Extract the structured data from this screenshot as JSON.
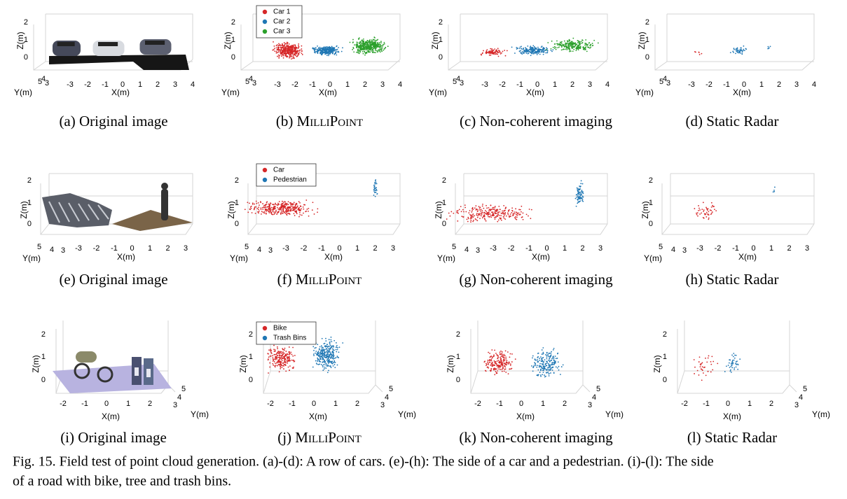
{
  "figure": {
    "panels": [
      {
        "label": "(a)",
        "text": "Original image",
        "axes": {
          "z_label": "Z(m)",
          "x_label": "X(m)",
          "y_label": "Y(m)",
          "z_ticks": [
            0,
            1,
            2
          ],
          "x_ticks": [
            -3,
            -2,
            -1,
            0,
            1,
            2,
            3,
            4
          ],
          "y_ticks": [
            5,
            4,
            3
          ]
        }
      },
      {
        "label": "(b)",
        "text": "MilliPoint",
        "axes": {
          "z_label": "Z(m)",
          "x_label": "X(m)",
          "y_label": "Y(m)",
          "z_ticks": [
            0,
            1,
            2
          ],
          "x_ticks": [
            -3,
            -2,
            -1,
            0,
            1,
            2,
            3,
            4
          ],
          "y_ticks": [
            5,
            4,
            3
          ]
        },
        "legend": [
          {
            "label": "Car 1",
            "color": "#d62728"
          },
          {
            "label": "Car 2",
            "color": "#1f77b4"
          },
          {
            "label": "Car 3",
            "color": "#2ca02c"
          }
        ]
      },
      {
        "label": "(c)",
        "text": "Non-coherent imaging",
        "axes": {
          "z_label": "Z(m)",
          "x_label": "X(m)",
          "y_label": "Y(m)",
          "z_ticks": [
            0,
            1,
            2
          ],
          "x_ticks": [
            -3,
            -2,
            -1,
            0,
            1,
            2,
            3,
            4
          ],
          "y_ticks": [
            5,
            4,
            3
          ]
        }
      },
      {
        "label": "(d)",
        "text": "Static Radar",
        "axes": {
          "z_label": "Z(m)",
          "x_label": "X(m)",
          "y_label": "Y(m)",
          "z_ticks": [
            0,
            1,
            2
          ],
          "x_ticks": [
            -3,
            -2,
            -1,
            0,
            1,
            2,
            3,
            4
          ],
          "y_ticks": [
            5,
            4,
            3
          ]
        }
      },
      {
        "label": "(e)",
        "text": "Original image",
        "axes": {
          "z_label": "Z(m)",
          "x_label": "X(m)",
          "y_label": "Y(m)",
          "z_ticks": [
            0,
            1,
            2
          ],
          "x_ticks": [
            -3,
            -2,
            -1,
            0,
            1,
            2,
            3
          ],
          "y_ticks": [
            5,
            4,
            3
          ]
        }
      },
      {
        "label": "(f)",
        "text": "MilliPoint",
        "axes": {
          "z_label": "Z(m)",
          "x_label": "X(m)",
          "y_label": "Y(m)",
          "z_ticks": [
            0,
            1,
            2
          ],
          "x_ticks": [
            -3,
            -2,
            -1,
            0,
            1,
            2,
            3
          ],
          "y_ticks": [
            5,
            4,
            3
          ]
        },
        "legend": [
          {
            "label": "Car",
            "color": "#d62728"
          },
          {
            "label": "Pedestrian",
            "color": "#1f77b4"
          }
        ]
      },
      {
        "label": "(g)",
        "text": "Non-coherent imaging",
        "axes": {
          "z_label": "Z(m)",
          "x_label": "X(m)",
          "y_label": "Y(m)",
          "z_ticks": [
            0,
            1,
            2
          ],
          "x_ticks": [
            -3,
            -2,
            -1,
            0,
            1,
            2,
            3
          ],
          "y_ticks": [
            5,
            4,
            3
          ]
        }
      },
      {
        "label": "(h)",
        "text": "Static Radar",
        "axes": {
          "z_label": "Z(m)",
          "x_label": "X(m)",
          "y_label": "Y(m)",
          "z_ticks": [
            0,
            1,
            2
          ],
          "x_ticks": [
            -3,
            -2,
            -1,
            0,
            1,
            2,
            3
          ],
          "y_ticks": [
            5,
            4,
            3
          ]
        }
      },
      {
        "label": "(i)",
        "text": "Original image",
        "axes": {
          "z_label": "Z(m)",
          "x_label": "X(m)",
          "y_label": "Y(m)",
          "z_ticks": [
            0,
            1,
            2
          ],
          "x_ticks": [
            -2,
            -1,
            0,
            1,
            2
          ],
          "y_ticks": [
            3,
            4,
            5
          ]
        }
      },
      {
        "label": "(j)",
        "text": "MilliPoint",
        "axes": {
          "z_label": "Z(m)",
          "x_label": "X(m)",
          "y_label": "Y(m)",
          "z_ticks": [
            0,
            1,
            2
          ],
          "x_ticks": [
            -2,
            -1,
            0,
            1,
            2
          ],
          "y_ticks": [
            3,
            4,
            5
          ]
        },
        "legend": [
          {
            "label": "Bike",
            "color": "#d62728"
          },
          {
            "label": "Trash Bins",
            "color": "#1f77b4"
          }
        ]
      },
      {
        "label": "(k)",
        "text": "Non-coherent imaging",
        "axes": {
          "z_label": "Z(m)",
          "x_label": "X(m)",
          "y_label": "Y(m)",
          "z_ticks": [
            0,
            1,
            2
          ],
          "x_ticks": [
            -2,
            -1,
            0,
            1,
            2
          ],
          "y_ticks": [
            3,
            4,
            5
          ]
        }
      },
      {
        "label": "(l)",
        "text": "Static Radar",
        "axes": {
          "z_label": "Z(m)",
          "x_label": "X(m)",
          "y_label": "Y(m)",
          "z_ticks": [
            0,
            1,
            2
          ],
          "x_ticks": [
            -2,
            -1,
            0,
            1,
            2
          ],
          "y_ticks": [
            3,
            4,
            5
          ]
        }
      }
    ],
    "caption": [
      "Fig. 15.  Field test of point cloud generation. (a)-(d): A row of cars. (e)-(h): The side of a car and a pedestrian. (i)-(l): The side",
      "of a road with bike, tree and trash bins."
    ]
  }
}
